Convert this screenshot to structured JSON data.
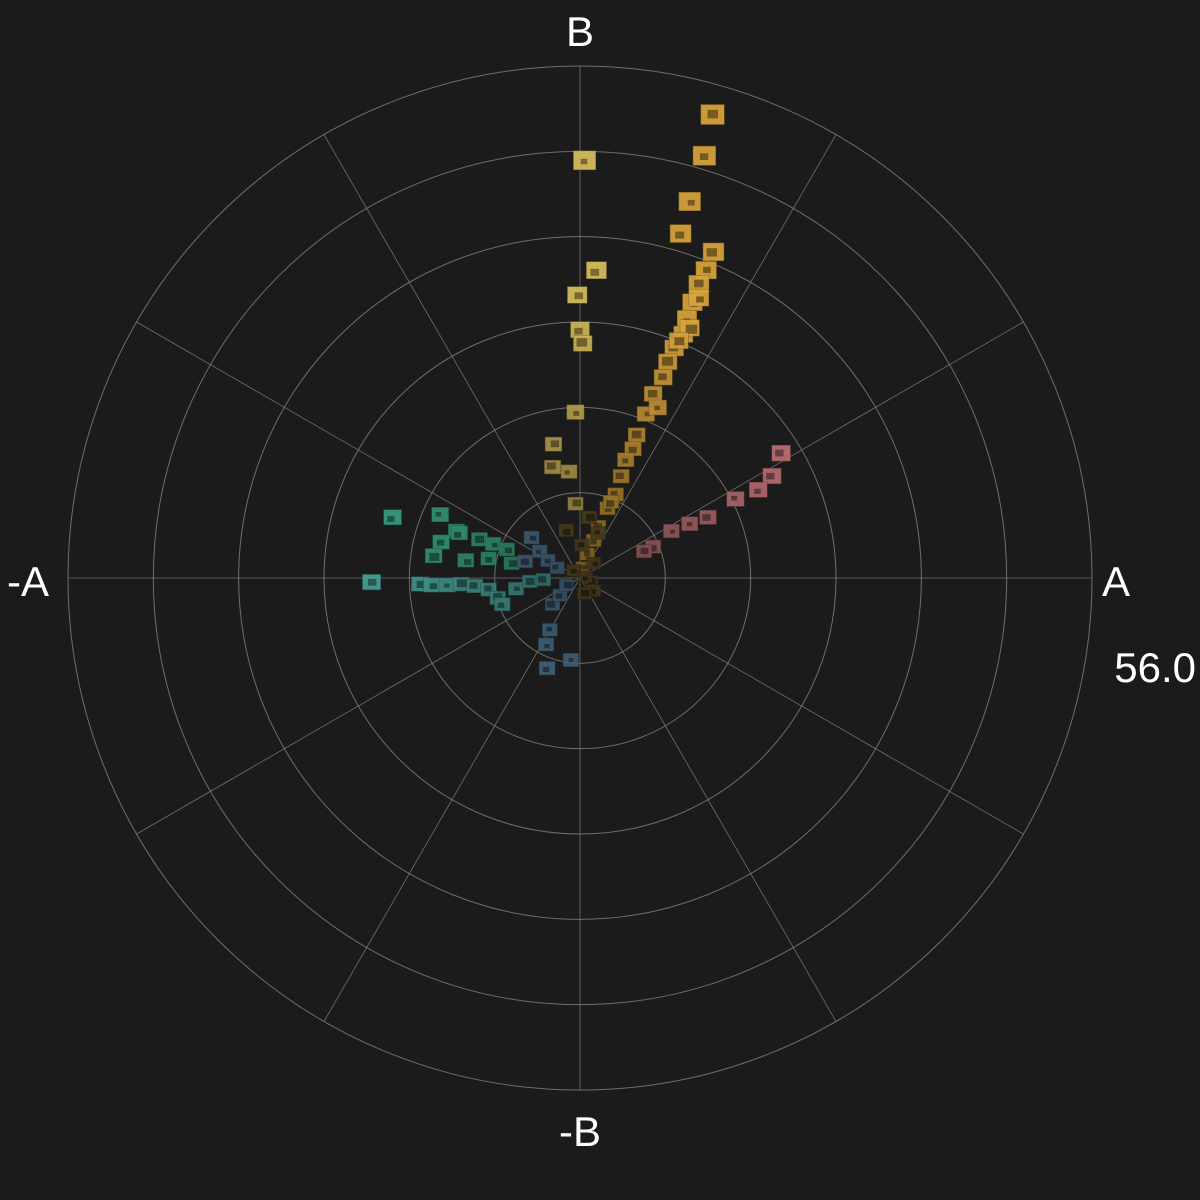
{
  "chart_data": {
    "type": "scatter",
    "subtype": "polar-chroma-thumbnails",
    "axes": {
      "pos_x": "A",
      "neg_x": "-A",
      "pos_y": "B",
      "neg_y": "-B"
    },
    "max_radius_label": "56.0",
    "r_max": 56.0,
    "ring_count": 6,
    "spoke_count": 12,
    "grid": true,
    "background": "#1b1b1b",
    "series": [
      {
        "color": "#d9a53c",
        "points": [
          [
            14.5,
            50.5
          ],
          [
            13.6,
            46.0
          ],
          [
            12.0,
            41.0
          ],
          [
            11.0,
            37.5
          ],
          [
            14.6,
            35.5
          ],
          [
            13.8,
            33.5
          ],
          [
            13.0,
            32.0
          ],
          [
            12.3,
            30.0
          ],
          [
            11.7,
            28.2
          ],
          [
            11.3,
            26.5
          ],
          [
            10.3,
            25.0
          ],
          [
            9.6,
            23.5
          ],
          [
            9.1,
            21.8
          ],
          [
            8.0,
            20.0
          ],
          [
            7.2,
            17.8
          ],
          [
            6.2,
            15.5
          ],
          [
            5.8,
            14.0
          ],
          [
            4.5,
            11.0
          ],
          [
            3.9,
            9.0
          ],
          [
            3.0,
            7.5
          ],
          [
            2.0,
            5.5
          ],
          [
            1.5,
            4.0
          ],
          [
            0.8,
            2.5
          ],
          [
            0.3,
            1.0
          ],
          [
            13.0,
            30.5
          ],
          [
            12.0,
            27.2
          ],
          [
            10.8,
            25.8
          ],
          [
            8.5,
            18.5
          ],
          [
            5.0,
            12.8
          ],
          [
            3.4,
            8.2
          ]
        ]
      },
      {
        "color": "#d9bf5c",
        "points": [
          [
            0.5,
            45.5
          ],
          [
            1.8,
            33.5
          ],
          [
            -0.3,
            30.8
          ],
          [
            0.0,
            27.0
          ],
          [
            0.3,
            25.5
          ],
          [
            -0.5,
            18.0
          ],
          [
            -2.9,
            14.5
          ],
          [
            -3.0,
            12.0
          ],
          [
            -1.2,
            11.5
          ],
          [
            -0.5,
            8.0
          ]
        ]
      },
      {
        "color": "#c8767a",
        "points": [
          [
            22.0,
            13.5
          ],
          [
            21.0,
            11.0
          ],
          [
            19.5,
            9.5
          ],
          [
            17.0,
            8.5
          ],
          [
            14.0,
            6.5
          ],
          [
            12.0,
            5.8
          ],
          [
            10.0,
            5.0
          ],
          [
            8.0,
            3.3
          ],
          [
            7.0,
            2.8
          ]
        ]
      },
      {
        "color": "#3fb38f",
        "points": [
          [
            -20.5,
            6.5
          ],
          [
            -15.3,
            6.8
          ],
          [
            -13.5,
            5.0
          ],
          [
            -15.2,
            3.8
          ],
          [
            -11.0,
            4.1
          ],
          [
            -9.5,
            3.6
          ],
          [
            -8.0,
            3.0
          ],
          [
            -12.5,
            1.8
          ],
          [
            -10.0,
            2.0
          ],
          [
            -7.5,
            1.5
          ],
          [
            -16.0,
            2.3
          ],
          [
            -13.2,
            4.8
          ]
        ]
      },
      {
        "color": "#4fb3a8",
        "points": [
          [
            -22.8,
            -0.6
          ],
          [
            -17.5,
            -0.8
          ],
          [
            -16.2,
            -0.9
          ],
          [
            -14.5,
            -0.9
          ],
          [
            -13.0,
            -0.8
          ],
          [
            -11.5,
            -1.0
          ],
          [
            -10.0,
            -1.4
          ],
          [
            -9.0,
            -2.3
          ],
          [
            -8.5,
            -3.0
          ],
          [
            -7.0,
            -1.3
          ],
          [
            -5.5,
            -0.5
          ],
          [
            -4.0,
            -0.3
          ]
        ]
      },
      {
        "color": "#5b87a6",
        "points": [
          [
            -5.3,
            4.3
          ],
          [
            -4.4,
            2.8
          ],
          [
            -3.5,
            1.8
          ],
          [
            -2.5,
            1.0
          ],
          [
            -6.0,
            1.7
          ],
          [
            -3.0,
            -3.0
          ],
          [
            -3.3,
            -5.8
          ],
          [
            -3.7,
            -7.4
          ],
          [
            -1.0,
            -9.1
          ],
          [
            -3.6,
            -10.0
          ],
          [
            -2.2,
            -2.0
          ],
          [
            -1.5,
            -0.9
          ]
        ]
      },
      {
        "color": "#6b5a2e",
        "points": [
          [
            1.0,
            6.5
          ],
          [
            2.0,
            4.8
          ],
          [
            -1.5,
            5.1
          ],
          [
            0.2,
            3.5
          ],
          [
            1.5,
            1.5
          ],
          [
            1.2,
            -0.5
          ],
          [
            1.5,
            -1.5
          ],
          [
            0.5,
            -1.8
          ],
          [
            -0.7,
            0.7
          ],
          [
            0.6,
            0.0
          ]
        ]
      }
    ]
  }
}
